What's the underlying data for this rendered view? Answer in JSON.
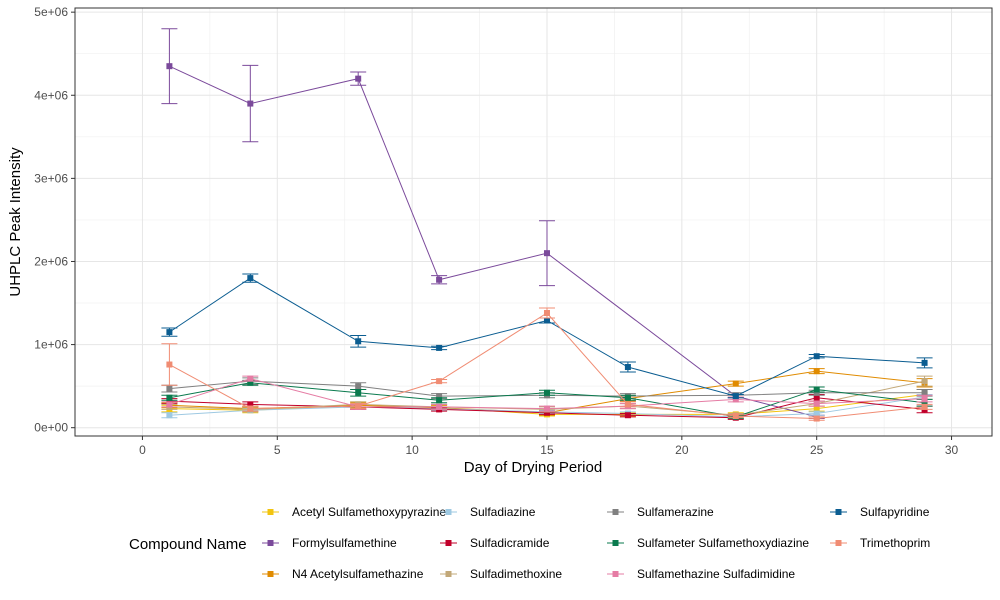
{
  "chart_data": {
    "type": "line",
    "title": "",
    "xlabel": "Day of Drying Period",
    "ylabel": "UHPLC Peak Intensity",
    "xlim": [
      -2.5,
      31.5
    ],
    "ylim": [
      -100000,
      5050000
    ],
    "x_ticks": [
      0,
      5,
      10,
      15,
      20,
      25,
      30
    ],
    "x_tick_labels": [
      "0",
      "5",
      "10",
      "15",
      "20",
      "25",
      "30"
    ],
    "y_ticks": [
      0,
      1000000,
      2000000,
      3000000,
      4000000,
      5000000
    ],
    "y_tick_labels": [
      "0e+00",
      "1e+06",
      "2e+06",
      "3e+06",
      "4e+06",
      "5e+06"
    ],
    "grid": true,
    "legend_title": "Compound Name",
    "legend_position": "bottom",
    "x": [
      1,
      4,
      8,
      11,
      15,
      18,
      22,
      25,
      29
    ],
    "series": [
      {
        "name": "Acetyl Sulfamethoxypyrazine",
        "color": "#F2C40F",
        "values": [
          230000,
          210000,
          270000,
          240000,
          160000,
          160000,
          160000,
          230000,
          400000
        ],
        "errors": [
          40000,
          30000,
          40000,
          30000,
          20000,
          20000,
          20000,
          30000,
          60000
        ]
      },
      {
        "name": "Formylsulfamethine",
        "color": "#7B4A9B",
        "values": [
          4350000,
          3900000,
          4200000,
          1780000,
          2100000,
          null,
          380000,
          130000,
          null
        ],
        "errors": [
          450000,
          460000,
          80000,
          50000,
          390000,
          null,
          20000,
          20000,
          null
        ]
      },
      {
        "name": "N4 Acetylsulfamethazine",
        "color": "#E08B00",
        "values": [
          270000,
          230000,
          270000,
          240000,
          180000,
          350000,
          530000,
          680000,
          540000
        ],
        "errors": [
          30000,
          30000,
          30000,
          30000,
          30000,
          30000,
          30000,
          30000,
          50000
        ]
      },
      {
        "name": "Sulfadiazine",
        "color": "#9EC9E2",
        "values": [
          150000,
          210000,
          250000,
          230000,
          190000,
          170000,
          130000,
          170000,
          370000
        ],
        "errors": [
          30000,
          20000,
          30000,
          20000,
          20000,
          20000,
          20000,
          20000,
          30000
        ]
      },
      {
        "name": "Sulfadicramide",
        "color": "#C1002A",
        "values": [
          320000,
          280000,
          250000,
          220000,
          180000,
          150000,
          120000,
          360000,
          220000
        ],
        "errors": [
          30000,
          30000,
          30000,
          20000,
          20000,
          20000,
          20000,
          40000,
          40000
        ]
      },
      {
        "name": "Sulfadimethoxine",
        "color": "#C2A878",
        "values": [
          250000,
          220000,
          280000,
          250000,
          220000,
          260000,
          150000,
          290000,
          560000
        ],
        "errors": [
          30000,
          30000,
          30000,
          30000,
          30000,
          30000,
          20000,
          30000,
          60000
        ]
      },
      {
        "name": "Sulfamerazine",
        "color": "#808080",
        "values": [
          470000,
          560000,
          500000,
          380000,
          390000,
          380000,
          390000,
          420000,
          420000
        ],
        "errors": [
          40000,
          40000,
          40000,
          30000,
          30000,
          30000,
          30000,
          30000,
          40000
        ]
      },
      {
        "name": "Sulfameter Sulfamethoxydiazine",
        "color": "#0A7A4E",
        "values": [
          360000,
          540000,
          420000,
          330000,
          420000,
          360000,
          130000,
          460000,
          300000
        ],
        "errors": [
          30000,
          30000,
          40000,
          30000,
          30000,
          30000,
          20000,
          30000,
          40000
        ]
      },
      {
        "name": "Sulfamethazine Sulfadimidine",
        "color": "#E57CA4",
        "values": [
          280000,
          590000,
          250000,
          250000,
          230000,
          260000,
          340000,
          290000,
          350000
        ],
        "errors": [
          30000,
          30000,
          30000,
          30000,
          30000,
          30000,
          30000,
          30000,
          40000
        ]
      },
      {
        "name": "Sulfapyridine",
        "color": "#0B5D91",
        "values": [
          1150000,
          1800000,
          1040000,
          960000,
          1290000,
          730000,
          380000,
          860000,
          780000
        ],
        "errors": [
          50000,
          50000,
          70000,
          20000,
          30000,
          60000,
          20000,
          20000,
          60000
        ]
      },
      {
        "name": "Trimethoprim",
        "color": "#F08C73",
        "values": [
          760000,
          230000,
          260000,
          560000,
          1380000,
          280000,
          140000,
          110000,
          250000
        ],
        "errors": [
          250000,
          30000,
          30000,
          20000,
          60000,
          30000,
          20000,
          20000,
          30000
        ]
      }
    ]
  }
}
